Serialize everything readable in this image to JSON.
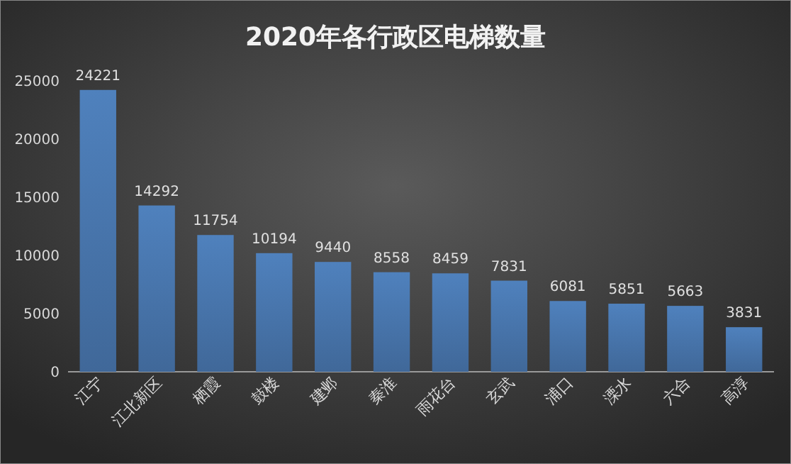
{
  "chart_data": {
    "type": "bar",
    "title": "2020年各行政区电梯数量",
    "categories": [
      "江宁",
      "江北新区",
      "栖霞",
      "鼓楼",
      "建邺",
      "秦淮",
      "雨花台",
      "玄武",
      "浦口",
      "溧水",
      "六合",
      "高淳"
    ],
    "values": [
      24221,
      14292,
      11754,
      10194,
      9440,
      8558,
      8459,
      7831,
      6081,
      5851,
      5663,
      3831
    ],
    "color": "#4f81bd",
    "ylim": [
      0,
      25000
    ],
    "yticks": [
      0,
      5000,
      10000,
      15000,
      20000,
      25000
    ],
    "grid": false,
    "data_labels": true
  }
}
